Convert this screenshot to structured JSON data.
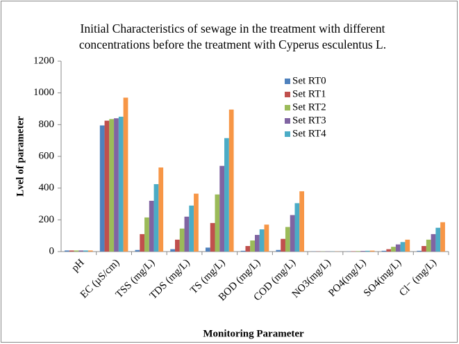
{
  "chart_data": {
    "type": "bar",
    "title": "Initial Characteristics of sewage in the treatment with different concentrations before the treatment with Cyperus esculentus L.",
    "x_label": "Monitoring Parameter",
    "y_label": "Lvel of parameter",
    "categories": [
      "pH",
      "EC (µS/cm)",
      "TSS (mg/L)",
      "TDS (mg/L)",
      "TS (mg/L)",
      "BOD (mg/L)",
      "COD (mg/L)",
      "NO3(mg/L)",
      "PO4(mg/L)",
      "SO4(mg/L)",
      "Cl⁻ (mg/L)"
    ],
    "series": [
      {
        "name": "Set RT0",
        "color": "#4F81BD",
        "values": [
          7,
          795,
          10,
          15,
          25,
          5,
          10,
          1,
          1,
          5,
          5
        ]
      },
      {
        "name": "Set RT1",
        "color": "#C0504D",
        "values": [
          7,
          825,
          110,
          75,
          180,
          35,
          80,
          1,
          2,
          15,
          35
        ]
      },
      {
        "name": "Set RT2",
        "color": "#9BBB59",
        "values": [
          7,
          835,
          215,
          145,
          360,
          70,
          155,
          1,
          3,
          30,
          75
        ]
      },
      {
        "name": "Set RT3",
        "color": "#8064A2",
        "values": [
          7,
          840,
          320,
          220,
          540,
          105,
          230,
          1,
          4,
          45,
          110
        ]
      },
      {
        "name": "Set RT4",
        "color": "#4BACC6",
        "values": [
          7,
          850,
          425,
          290,
          715,
          140,
          305,
          1,
          5,
          60,
          150
        ]
      },
      {
        "color": "#F79646",
        "values": [
          7,
          970,
          530,
          365,
          895,
          170,
          380,
          1,
          6,
          75,
          185
        ]
      }
    ],
    "ylim": [
      0,
      1200
    ],
    "yticks": [
      0,
      200,
      400,
      600,
      800,
      1000,
      1200
    ]
  }
}
